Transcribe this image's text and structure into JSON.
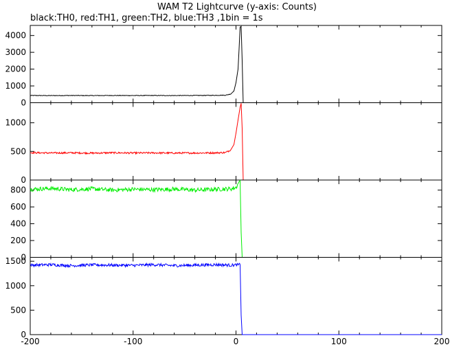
{
  "title": "WAM T2 Lightcurve (y-axis: Counts)",
  "subtitle": "black:TH0, red:TH1, green:TH2, blue:TH3 ,1bin = 1s",
  "chart_data": {
    "type": "line",
    "title": "WAM T2 Lightcurve (y-axis: Counts)",
    "subtitle": "black:TH0, red:TH1, green:TH2, blue:TH3 ,1bin = 1s",
    "xlim": [
      -200,
      200
    ],
    "x_ticks": [
      -200,
      -100,
      0,
      100,
      200
    ],
    "x_tick_labels": [
      "-200",
      "-100",
      "0",
      "100",
      "200"
    ],
    "grid": false,
    "panels": [
      {
        "name": "TH0",
        "color": "#000000",
        "ylim": [
          0,
          4600
        ],
        "y_ticks": [
          0,
          1000,
          2000,
          3000,
          4000
        ],
        "y_tick_labels": [
          "0",
          "1000",
          "2000",
          "3000",
          "4000"
        ],
        "points": [
          [
            -200,
            430
          ],
          [
            -180,
            425
          ],
          [
            -160,
            430
          ],
          [
            -140,
            425
          ],
          [
            -120,
            432
          ],
          [
            -100,
            428
          ],
          [
            -80,
            430
          ],
          [
            -60,
            427
          ],
          [
            -40,
            432
          ],
          [
            -20,
            440
          ],
          [
            -10,
            450
          ],
          [
            -5,
            520
          ],
          [
            -2,
            700
          ],
          [
            0,
            1200
          ],
          [
            2,
            2000
          ],
          [
            3,
            3200
          ],
          [
            4,
            4500
          ],
          [
            5,
            4550
          ],
          [
            6,
            2500
          ],
          [
            7,
            0
          ],
          [
            200,
            0
          ]
        ],
        "noise": 18,
        "jitter_until": -5
      },
      {
        "name": "TH1",
        "color": "#ff0000",
        "ylim": [
          0,
          1350
        ],
        "y_ticks": [
          0,
          500,
          1000
        ],
        "y_tick_labels": [
          "0",
          "500",
          "1000"
        ],
        "points": [
          [
            -200,
            478
          ],
          [
            -180,
            472
          ],
          [
            -160,
            475
          ],
          [
            -140,
            470
          ],
          [
            -120,
            476
          ],
          [
            -100,
            472
          ],
          [
            -80,
            474
          ],
          [
            -60,
            471
          ],
          [
            -40,
            472
          ],
          [
            -20,
            475
          ],
          [
            -10,
            480
          ],
          [
            -5,
            530
          ],
          [
            -2,
            620
          ],
          [
            0,
            820
          ],
          [
            2,
            1050
          ],
          [
            4,
            1270
          ],
          [
            5,
            1340
          ],
          [
            6,
            900
          ],
          [
            7,
            0
          ],
          [
            200,
            0
          ]
        ],
        "noise": 15,
        "jitter_until": -5
      },
      {
        "name": "TH2",
        "color": "#00ee00",
        "ylim": [
          0,
          920
        ],
        "y_ticks": [
          0,
          200,
          400,
          600,
          800
        ],
        "y_tick_labels": [
          "0",
          "200",
          "400",
          "600",
          "800"
        ],
        "points": [
          [
            -200,
            810
          ],
          [
            -180,
            820
          ],
          [
            -160,
            805
          ],
          [
            -140,
            815
          ],
          [
            -120,
            800
          ],
          [
            -100,
            810
          ],
          [
            -80,
            805
          ],
          [
            -60,
            812
          ],
          [
            -40,
            800
          ],
          [
            -20,
            810
          ],
          [
            -5,
            815
          ],
          [
            0,
            830
          ],
          [
            3,
            900
          ],
          [
            4,
            915
          ],
          [
            5,
            300
          ],
          [
            6,
            0
          ],
          [
            200,
            0
          ]
        ],
        "noise": 25,
        "jitter_until": 2
      },
      {
        "name": "TH3",
        "color": "#0000ff",
        "ylim": [
          0,
          1580
        ],
        "y_ticks": [
          0,
          500,
          1000,
          1500
        ],
        "y_tick_labels": [
          "0",
          "500",
          "1000",
          "1500"
        ],
        "points": [
          [
            -200,
            1420
          ],
          [
            -180,
            1430
          ],
          [
            -160,
            1410
          ],
          [
            -140,
            1425
          ],
          [
            -120,
            1420
          ],
          [
            -100,
            1415
          ],
          [
            -80,
            1430
          ],
          [
            -60,
            1410
          ],
          [
            -40,
            1420
          ],
          [
            -20,
            1430
          ],
          [
            -5,
            1420
          ],
          [
            0,
            1425
          ],
          [
            4,
            1430
          ],
          [
            5,
            400
          ],
          [
            6,
            0
          ],
          [
            200,
            0
          ]
        ],
        "noise": 30,
        "jitter_until": 4
      }
    ]
  }
}
